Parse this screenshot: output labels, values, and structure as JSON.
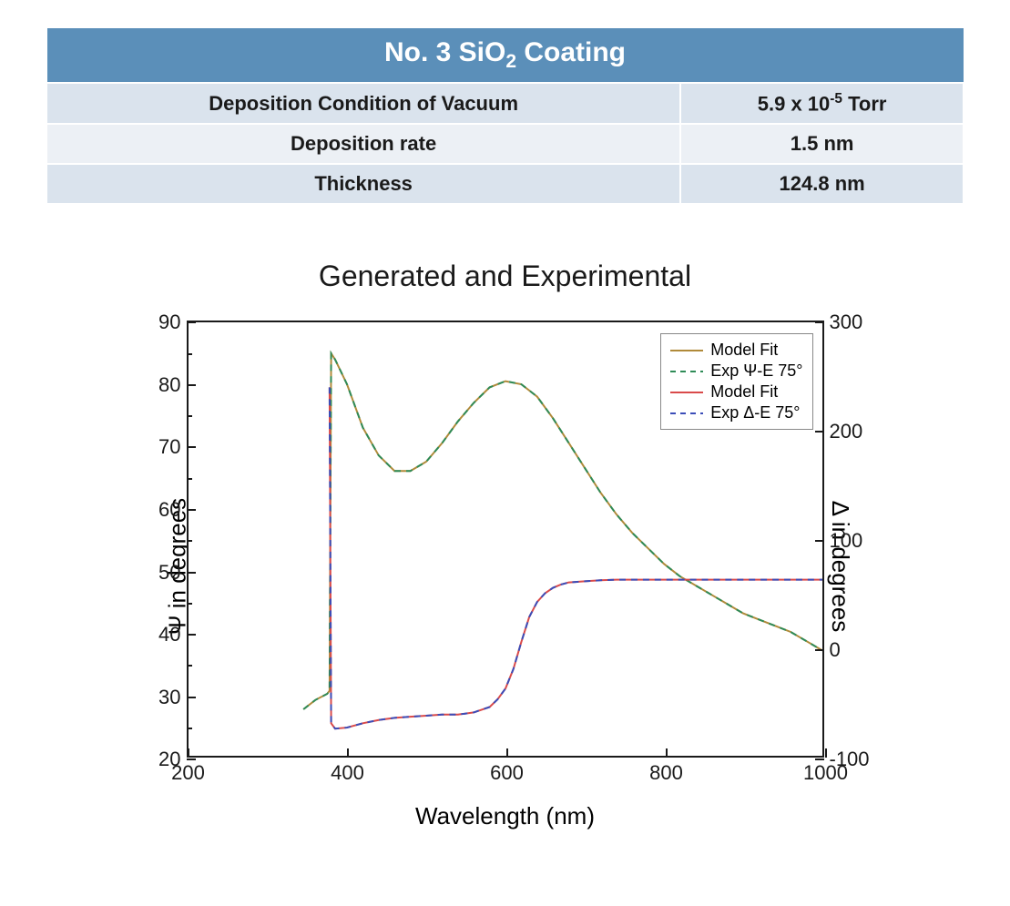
{
  "table": {
    "header": "No. 3 SiO<sub class='sub'>2</sub>  Coating",
    "rows": [
      {
        "label": "Deposition Condition of Vacuum",
        "value": "5.9 x 10<sup class='sup'>-5</sup> Torr",
        "bg": "a"
      },
      {
        "label": "Deposition rate",
        "value": "1.5 nm",
        "bg": "b"
      },
      {
        "label": "Thickness",
        "value": "124.8 nm",
        "bg": "a"
      }
    ],
    "header_bg": "#5b8fb9",
    "header_fg": "#ffffff",
    "row_bg_a": "#dae3ed",
    "row_bg_b": "#ecf0f5"
  },
  "chart": {
    "type": "line",
    "title": "Generated and Experimental",
    "xlabel": "Wavelength (nm)",
    "ylabel_left": "Ψ in degrees",
    "ylabel_right": "Δ in degrees",
    "xlim": [
      200,
      1000
    ],
    "ylim_left": [
      20,
      90
    ],
    "ylim_right": [
      -100,
      300
    ],
    "xticks": [
      200,
      400,
      600,
      800,
      1000
    ],
    "yticks_left": [
      20,
      30,
      40,
      50,
      60,
      70,
      80,
      90
    ],
    "yticks_right": [
      -100,
      0,
      100,
      200,
      300
    ],
    "yticks_left_minor": [
      25,
      35,
      45,
      55,
      65,
      75,
      85
    ],
    "background_color": "#ffffff",
    "border_color": "#1a1a1a",
    "title_fontsize": 32,
    "label_fontsize": 26,
    "tick_fontsize": 22,
    "legend_fontsize": 18,
    "legend": {
      "position": "top-right",
      "items": [
        {
          "label": "Model Fit",
          "color": "#b08a3a",
          "dash": "solid"
        },
        {
          "label": "Exp Ψ-E 75°",
          "color": "#2e8b57",
          "dash": "dashed"
        },
        {
          "label": "Model Fit",
          "color": "#d94a4a",
          "dash": "solid"
        },
        {
          "label": "Exp Δ-E 75°",
          "color": "#3b4db8",
          "dash": "dashed"
        }
      ]
    },
    "series": [
      {
        "name": "psi_model",
        "axis": "left",
        "color": "#b08a3a",
        "dash": "solid",
        "linewidth": 2,
        "x": [
          345,
          360,
          375,
          378,
          380,
          385,
          400,
          420,
          440,
          460,
          480,
          500,
          520,
          540,
          560,
          580,
          600,
          620,
          640,
          660,
          680,
          700,
          720,
          740,
          760,
          780,
          800,
          820,
          840,
          860,
          880,
          900,
          920,
          940,
          960,
          980,
          1000
        ],
        "y": [
          27.5,
          29,
          30,
          30.5,
          85,
          84,
          80,
          73,
          68.5,
          66,
          66,
          67.5,
          70.5,
          74,
          77,
          79.5,
          80.5,
          80,
          78,
          74.5,
          70.5,
          66.5,
          62.5,
          59,
          56,
          53.5,
          51,
          49,
          47.5,
          46,
          44.5,
          43,
          42,
          41,
          40,
          38.5,
          37
        ]
      },
      {
        "name": "psi_exp",
        "axis": "left",
        "color": "#2e8b57",
        "dash": "dashed",
        "linewidth": 2,
        "x": [
          345,
          360,
          375,
          378,
          380,
          385,
          400,
          420,
          440,
          460,
          480,
          500,
          520,
          540,
          560,
          580,
          600,
          620,
          640,
          660,
          680,
          700,
          720,
          740,
          760,
          780,
          800,
          820,
          840,
          860,
          880,
          900,
          920,
          940,
          960,
          980,
          1000
        ],
        "y": [
          27.5,
          29,
          30,
          30.5,
          85,
          84,
          80,
          73,
          68.5,
          66,
          66,
          67.5,
          70.5,
          74,
          77,
          79.5,
          80.5,
          80,
          78,
          74.5,
          70.5,
          66.5,
          62.5,
          59,
          56,
          53.5,
          51,
          49,
          47.5,
          46,
          44.5,
          43,
          42,
          41,
          40,
          38.5,
          37
        ]
      },
      {
        "name": "delta_model",
        "axis": "right",
        "color": "#d94a4a",
        "dash": "solid",
        "linewidth": 2,
        "x": [
          378,
          380,
          385,
          400,
          420,
          440,
          460,
          480,
          500,
          520,
          540,
          560,
          580,
          590,
          600,
          610,
          620,
          630,
          640,
          650,
          660,
          670,
          680,
          700,
          720,
          740,
          760,
          800,
          850,
          900,
          950,
          1000
        ],
        "y": [
          240,
          -70,
          -75,
          -74,
          -70,
          -67,
          -65,
          -64,
          -63,
          -62,
          -62,
          -60,
          -55,
          -48,
          -38,
          -20,
          5,
          28,
          42,
          50,
          55,
          58,
          60,
          61,
          62,
          62.5,
          62.5,
          62.5,
          62.5,
          62.5,
          62.5,
          62.5
        ]
      },
      {
        "name": "delta_exp",
        "axis": "right",
        "color": "#3b4db8",
        "dash": "dashed",
        "linewidth": 2,
        "x": [
          378,
          380,
          385,
          400,
          420,
          440,
          460,
          480,
          500,
          520,
          540,
          560,
          580,
          590,
          600,
          610,
          620,
          630,
          640,
          650,
          660,
          670,
          680,
          700,
          720,
          740,
          760,
          800,
          850,
          900,
          950,
          1000
        ],
        "y": [
          240,
          -70,
          -75,
          -74,
          -70,
          -67,
          -65,
          -64,
          -63,
          -62,
          -62,
          -60,
          -55,
          -48,
          -38,
          -20,
          5,
          28,
          42,
          50,
          55,
          58,
          60,
          61,
          62,
          62.5,
          62.5,
          62.5,
          62.5,
          62.5,
          62.5,
          62.5
        ]
      }
    ]
  }
}
